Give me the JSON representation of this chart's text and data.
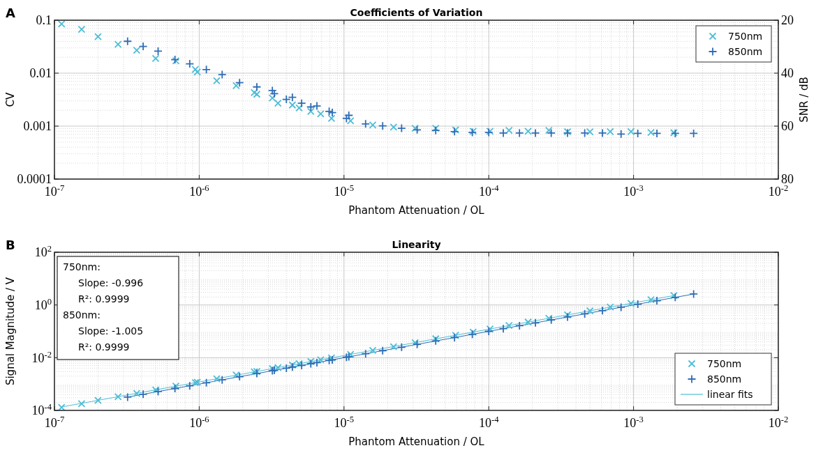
{
  "chart_data": [
    {
      "type": "scatter",
      "title": "Coefficients of Variation",
      "xlabel": "Phantom Attenuation / OL",
      "ylabel": "CV",
      "y2label": "SNR / dB",
      "annotations": [
        "A"
      ],
      "log": "xy",
      "grid": true,
      "legend": "top right",
      "xlim": [
        1e-07,
        0.01
      ],
      "xticks": [
        {
          "value": 1e-07,
          "label": "10$^{-7}$"
        },
        {
          "value": 1e-06,
          "label": "10$^{-6}$"
        },
        {
          "value": 1e-05,
          "label": "10$^{-5}$"
        },
        {
          "value": 0.0001,
          "label": "10$^{-4}$"
        },
        {
          "value": 0.001,
          "label": "10$^{-3}$"
        },
        {
          "value": 0.01,
          "label": "10$^{-2}$"
        }
      ],
      "ylim": [
        0.0001,
        0.1
      ],
      "yticks": [
        0.0001,
        0.001,
        0.01,
        0.1
      ],
      "y2lim": [
        80,
        20
      ],
      "y2ticks": [
        20,
        40,
        60,
        80
      ],
      "series": [
        {
          "name": "750nm",
          "color": "#4dbdd6",
          "marker": "cross",
          "x": [
            1.12e-07,
            1.54e-07,
            2e-07,
            2.75e-07,
            3.7e-07,
            5e-07,
            6.9e-07,
            9.4e-07,
            9.7e-07,
            1.32e-06,
            1.8e-06,
            2.4e-06,
            2.5e-06,
            3.2e-06,
            3.5e-06,
            4.4e-06,
            4.9e-06,
            5.9e-06,
            6.9e-06,
            8.2e-06,
            1.11e-05,
            1.58e-05,
            2.2e-05,
            3.1e-05,
            4.3e-05,
            5.9e-05,
            7.8e-05,
            0.000102,
            0.000138,
            0.000187,
            0.00026,
            0.00035,
            0.0005,
            0.00069,
            0.00096,
            0.00132,
            0.0019
          ],
          "values": [
            0.085,
            0.067,
            0.049,
            0.035,
            0.027,
            0.019,
            0.017,
            0.0118,
            0.0105,
            0.0072,
            0.0058,
            0.0043,
            0.004,
            0.0034,
            0.0027,
            0.0025,
            0.0022,
            0.0019,
            0.0017,
            0.0014,
            0.00126,
            0.00105,
            0.00096,
            0.00091,
            0.00091,
            0.00085,
            0.0008,
            0.0008,
            0.00083,
            0.0008,
            0.00083,
            0.00078,
            0.00078,
            0.00079,
            0.00079,
            0.00076,
            0.00075
          ]
        },
        {
          "name": "850nm",
          "color": "#2f6db5",
          "marker": "plus",
          "x": [
            3.2e-07,
            4.1e-07,
            5.2e-07,
            6.8e-07,
            8.6e-07,
            1.12e-06,
            1.44e-06,
            1.9e-06,
            2.5e-06,
            3.2e-06,
            3.3e-06,
            4e-06,
            4.4e-06,
            5.1e-06,
            5.9e-06,
            6.5e-06,
            7.9e-06,
            8.3e-06,
            1.04e-05,
            1.08e-05,
            1.41e-05,
            1.85e-05,
            2.5e-05,
            3.2e-05,
            4.3e-05,
            5.8e-05,
            7.7e-05,
            0.0001,
            0.000126,
            0.000163,
            0.00021,
            0.00027,
            0.00035,
            0.00046,
            0.00061,
            0.00082,
            0.00107,
            0.00145,
            0.00194,
            0.0026
          ],
          "values": [
            0.04,
            0.032,
            0.026,
            0.018,
            0.015,
            0.0117,
            0.0094,
            0.0066,
            0.0055,
            0.0047,
            0.0041,
            0.0032,
            0.0035,
            0.0027,
            0.0023,
            0.0024,
            0.0019,
            0.0018,
            0.0014,
            0.0016,
            0.0011,
            0.00101,
            0.00091,
            0.00085,
            0.00083,
            0.00079,
            0.00076,
            0.00076,
            0.00074,
            0.00074,
            0.00074,
            0.00074,
            0.00074,
            0.00074,
            0.00074,
            0.00071,
            0.00073,
            0.00073,
            0.00073,
            0.00073
          ]
        }
      ]
    },
    {
      "type": "scatter",
      "title": "Linearity",
      "xlabel": "Phantom Attenuation / OL",
      "ylabel": "Signal Magnitude / V",
      "annotations": [
        "B",
        "750nm:",
        "Slope: -0.996",
        "R²: 0.9999",
        "850nm:",
        "Slope: -1.005",
        "R²: 0.9999"
      ],
      "log": "xy",
      "grid": true,
      "legend": "bottom right",
      "xlim": [
        1e-07,
        0.01
      ],
      "xticks": [
        {
          "value": 1e-07,
          "label": "10$^{-7}$"
        },
        {
          "value": 1e-06,
          "label": "10$^{-6}$"
        },
        {
          "value": 1e-05,
          "label": "10$^{-5}$"
        },
        {
          "value": 0.0001,
          "label": "10$^{-4}$"
        },
        {
          "value": 0.001,
          "label": "10$^{-3}$"
        },
        {
          "value": 0.01,
          "label": "10$^{-2}$"
        }
      ],
      "ylim": [
        0.0001,
        100
      ],
      "yticks": [
        {
          "value": 0.0001,
          "label": "10$^{-4}$"
        },
        {
          "value": 0.01,
          "label": "10$^{-2}$"
        },
        {
          "value": 1,
          "label": "10$^{0}$"
        },
        {
          "value": 100,
          "label": "10$^{2}$"
        }
      ],
      "series": [
        {
          "name": "750nm",
          "color": "#4dbdd6",
          "marker": "cross",
          "x": [
            1.12e-07,
            1.54e-07,
            2e-07,
            2.75e-07,
            3.7e-07,
            5e-07,
            6.9e-07,
            9.4e-07,
            9.7e-07,
            1.32e-06,
            1.8e-06,
            2.4e-06,
            2.5e-06,
            3.2e-06,
            3.5e-06,
            4.4e-06,
            4.9e-06,
            5.9e-06,
            6.9e-06,
            8.2e-06,
            1.11e-05,
            1.58e-05,
            2.2e-05,
            3.1e-05,
            4.3e-05,
            5.9e-05,
            7.8e-05,
            0.000102,
            0.000138,
            0.000187,
            0.00026,
            0.00035,
            0.0005,
            0.00069,
            0.00096,
            0.00132,
            0.0019
          ],
          "values": [
            0.00013,
            0.00018,
            0.00024,
            0.00033,
            0.00044,
            0.0006,
            0.00083,
            0.00113,
            0.00116,
            0.00158,
            0.0022,
            0.0029,
            0.003,
            0.0038,
            0.0042,
            0.0053,
            0.0059,
            0.0071,
            0.0083,
            0.0098,
            0.0133,
            0.019,
            0.026,
            0.037,
            0.052,
            0.071,
            0.094,
            0.122,
            0.166,
            0.224,
            0.31,
            0.42,
            0.6,
            0.83,
            1.15,
            1.58,
            2.28
          ]
        },
        {
          "name": "850nm",
          "color": "#2f6db5",
          "marker": "plus",
          "x": [
            3.2e-07,
            4.1e-07,
            5.2e-07,
            6.8e-07,
            8.6e-07,
            1.12e-06,
            1.44e-06,
            1.9e-06,
            2.5e-06,
            3.2e-06,
            3.3e-06,
            4e-06,
            4.4e-06,
            5.1e-06,
            5.9e-06,
            6.5e-06,
            7.9e-06,
            8.3e-06,
            1.04e-05,
            1.08e-05,
            1.41e-05,
            1.85e-05,
            2.5e-05,
            3.2e-05,
            4.3e-05,
            5.8e-05,
            7.7e-05,
            0.0001,
            0.000126,
            0.000163,
            0.00021,
            0.00027,
            0.00035,
            0.00046,
            0.00061,
            0.00082,
            0.00107,
            0.00145,
            0.00194,
            0.0026
          ],
          "values": [
            0.00032,
            0.00041,
            0.00052,
            0.00068,
            0.00086,
            0.00112,
            0.00144,
            0.0019,
            0.0025,
            0.0032,
            0.0033,
            0.004,
            0.0044,
            0.0051,
            0.0059,
            0.0065,
            0.0079,
            0.0083,
            0.0104,
            0.0108,
            0.0141,
            0.0185,
            0.025,
            0.032,
            0.043,
            0.058,
            0.077,
            0.1,
            0.126,
            0.163,
            0.21,
            0.27,
            0.35,
            0.46,
            0.61,
            0.82,
            1.07,
            1.45,
            1.94,
            2.6
          ]
        },
        {
          "name": "linear fits",
          "type": "line",
          "color": "#4dbdd6",
          "marker": "none",
          "x": [
            1.12e-07,
            0.0019
          ],
          "values": [
            0.000135,
            2.28
          ]
        },
        {
          "type": "line",
          "color": "#2f6db5",
          "marker": "none",
          "x": [
            3.2e-07,
            0.0026
          ],
          "values": [
            0.00032,
            2.6
          ]
        }
      ]
    }
  ]
}
